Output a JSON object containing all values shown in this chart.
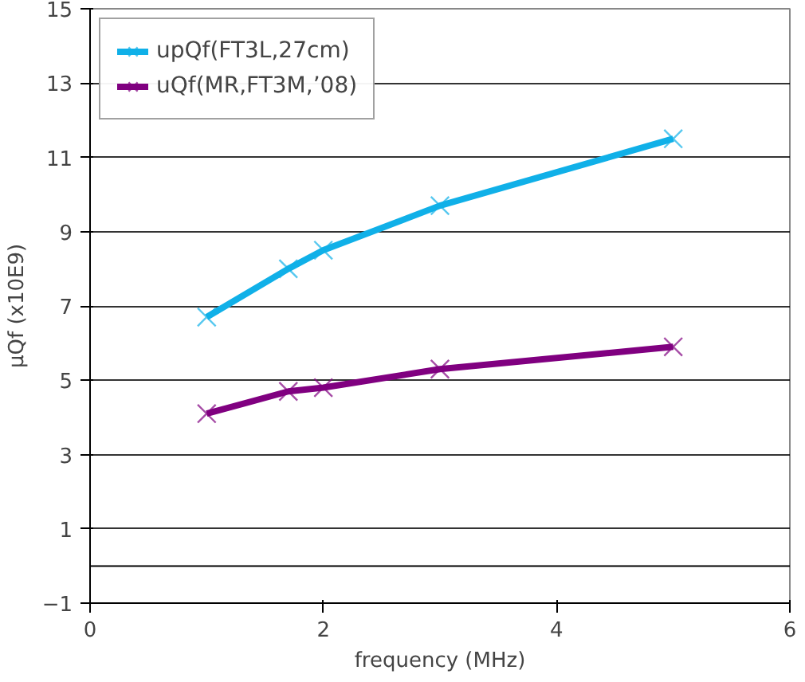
{
  "chart_data": {
    "type": "line",
    "xlabel": "frequency (MHz)",
    "ylabel": "μQf (x10E9)",
    "xlim": [
      0,
      6
    ],
    "xticks": [
      0,
      2,
      4,
      6
    ],
    "ylim": [
      -1,
      15
    ],
    "yticks": [
      -1,
      1,
      3,
      5,
      7,
      9,
      11,
      13,
      15
    ],
    "grid": "y",
    "legend": "top left",
    "line_style": "solid",
    "ref_lines": [
      {
        "axis": "y",
        "value": 0,
        "color": "#000000"
      }
    ],
    "series": [
      {
        "name": "upQf(FT3L,27cm)",
        "color": "#10b0e8",
        "marker": "cross",
        "x": [
          1,
          1.7,
          2,
          3,
          5
        ],
        "values": [
          6.7,
          8.0,
          8.5,
          9.7,
          11.5
        ]
      },
      {
        "name": "uQf(MR,FT3M,’08)",
        "color": "#800080",
        "marker": "cross",
        "x": [
          1,
          1.7,
          2,
          3,
          5
        ],
        "values": [
          4.1,
          4.7,
          4.8,
          5.3,
          5.9
        ]
      }
    ]
  }
}
